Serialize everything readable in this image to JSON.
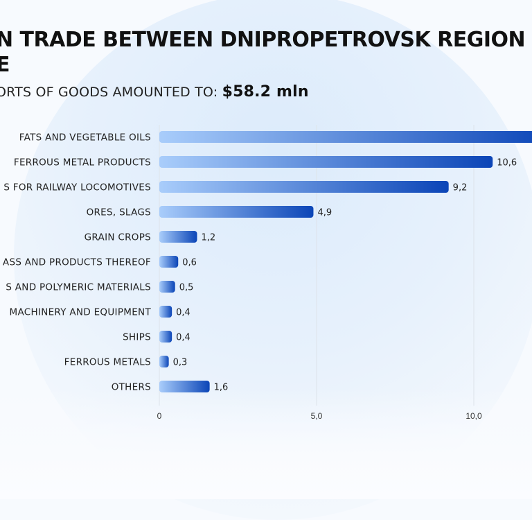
{
  "header": {
    "title": "N TRADE BETWEEN DNIPROPETROVSK REGION\nE",
    "subtitle_prefix": "ORTS OF GOODS AMOUNTED TO:",
    "subtitle_amount": "$58.2 mln"
  },
  "colors": {
    "bar_start": "#a9cdfb",
    "bar_end": "#0b45b7",
    "grid": "#dde3ea",
    "label_text": "#222222"
  },
  "chart_data": {
    "type": "bar",
    "orientation": "horizontal",
    "categories": [
      "FATS AND VEGETABLE OILS",
      "FERROUS METAL PRODUCTS",
      "S FOR RAILWAY LOCOMOTIVES",
      "ORES, SLAGS",
      "GRAIN CROPS",
      "ASS AND PRODUCTS THEREOF",
      "S AND POLYMERIC MATERIALS",
      "MACHINERY AND EQUIPMENT",
      "SHIPS",
      "FERROUS METALS",
      "OTHERS"
    ],
    "values": [
      12.5,
      10.6,
      9.2,
      4.9,
      1.2,
      0.6,
      0.5,
      0.4,
      0.4,
      0.3,
      1.6
    ],
    "value_labels": [
      "",
      "10,6",
      "9,2",
      "4,9",
      "1,2",
      "0,6",
      "0,5",
      "0,4",
      "0,4",
      "0,3",
      "1,6"
    ],
    "x_ticks": [
      0,
      5,
      10
    ],
    "x_tick_labels": [
      "0",
      "5,0",
      "10,0"
    ],
    "xlim": [
      0,
      12.0
    ],
    "grid": true,
    "xlabel": "",
    "ylabel": ""
  }
}
